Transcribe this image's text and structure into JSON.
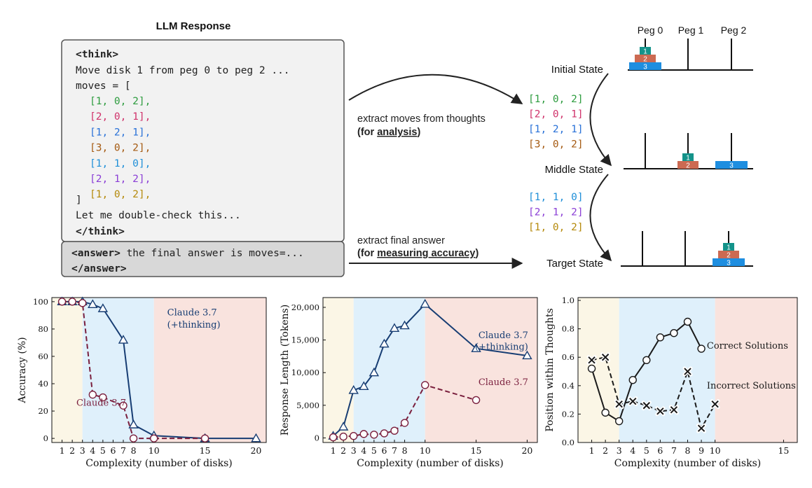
{
  "response": {
    "title": "LLM Response",
    "think_open": "<think>",
    "first_line": "Move disk 1 from peg 0 to peg 2 ...",
    "moves_open": "moves = [",
    "moves": [
      "[1, 0, 2],",
      "[2, 0, 1],",
      "[1, 2, 1],",
      "[3, 0, 2],",
      "[1, 1, 0],",
      "[2, 1, 2],",
      "[1, 0, 2],"
    ],
    "moves_close": "]",
    "check_line": "Let me double-check this...",
    "think_close": "</think>",
    "answer_tag": "<answer>",
    "answer_text": " the final answer is moves=...",
    "answer_close": "</answer>"
  },
  "move_colors": [
    "#2e9c3f",
    "#d0336b",
    "#2a72d8",
    "#a55a12",
    "#1f8fd8",
    "#8b3fd6",
    "#b58a0c"
  ],
  "arrows": {
    "thoughts_line1": "extract moves  from thoughts",
    "thoughts_line2_pre": "(for ",
    "thoughts_line2_em": "analysis",
    "thoughts_line2_post": ")",
    "answer_line1": "extract final answer",
    "answer_line2_pre": "(for ",
    "answer_line2_em": "measuring accuracy",
    "answer_line2_post": ")"
  },
  "extracted_moves_a": [
    "[1, 0, 2]",
    "[2, 0, 1]",
    "[1, 2, 1]",
    "[3, 0, 2]"
  ],
  "extracted_moves_b": [
    "[1, 1, 0]",
    "[2, 1, 2]",
    "[1, 0, 2]"
  ],
  "hanoi": {
    "peg_labels": [
      "Peg 0",
      "Peg 1",
      "Peg 2"
    ],
    "states": [
      "Initial State",
      "Middle State",
      "Target State"
    ],
    "disk_labels": [
      "1",
      "2",
      "3"
    ],
    "disk_colors": [
      "#14938a",
      "#cc6a52",
      "#1e8ee0"
    ]
  },
  "chart_data": [
    {
      "type": "line",
      "xlabel": "Complexity (number of disks)",
      "ylabel": "Accuracy (%)",
      "xlim": [
        0,
        21
      ],
      "ylim": [
        -3,
        103
      ],
      "xticks": [
        1,
        2,
        3,
        4,
        5,
        6,
        7,
        8,
        10,
        15,
        20
      ],
      "yticks": [
        0,
        20,
        40,
        60,
        80,
        100
      ],
      "regions": [
        [
          0,
          3,
          "#fbf6e6"
        ],
        [
          3,
          10,
          "#dff0fb"
        ],
        [
          10,
          21,
          "#f9e3de"
        ]
      ],
      "series": [
        {
          "name": "Claude 3.7 (+thinking)",
          "x": [
            1,
            2,
            3,
            4,
            5,
            7,
            8,
            10,
            15,
            20
          ],
          "y": [
            100,
            100,
            100,
            98,
            95,
            72,
            10,
            2,
            0,
            0
          ],
          "color": "#173d73",
          "marker": "triangle",
          "dash": false
        },
        {
          "name": "Claude 3.7",
          "x": [
            1,
            2,
            3,
            4,
            5,
            7,
            8,
            10,
            15
          ],
          "y": [
            100,
            100,
            99,
            32,
            30,
            24,
            0,
            0,
            0
          ],
          "color": "#7a1f3d",
          "marker": "circle",
          "dash": true
        }
      ],
      "labels": [
        {
          "text": "Claude 3.7",
          "x": 11.3,
          "y": 90,
          "color": "#173d73"
        },
        {
          "text": "(+thinking)",
          "x": 11.3,
          "y": 81,
          "color": "#173d73"
        },
        {
          "text": "Claude 3.7",
          "x": 2.4,
          "y": 24,
          "color": "#7a1f3d"
        }
      ]
    },
    {
      "type": "line",
      "xlabel": "Complexity (number of disks)",
      "ylabel": "Response Length (Tokens)",
      "xlim": [
        0,
        21
      ],
      "ylim": [
        -700,
        21500
      ],
      "xticks": [
        1,
        2,
        3,
        4,
        5,
        6,
        7,
        8,
        10,
        15,
        20
      ],
      "yticks": [
        0,
        5000,
        10000,
        15000,
        20000
      ],
      "ytick_labels": [
        "0",
        "5,000",
        "10,000",
        "15,000",
        "20,000"
      ],
      "regions": [
        [
          0,
          3,
          "#fbf6e6"
        ],
        [
          3,
          10,
          "#dff0fb"
        ],
        [
          10,
          21,
          "#f9e3de"
        ]
      ],
      "series": [
        {
          "name": "Claude 3.7 (+thinking)",
          "x": [
            1,
            2,
            3,
            4,
            5,
            6,
            7,
            8,
            10,
            15,
            20
          ],
          "y": [
            300,
            1700,
            7300,
            7900,
            10000,
            14400,
            16800,
            17200,
            20500,
            13700,
            12600
          ],
          "color": "#173d73",
          "marker": "triangle",
          "dash": false
        },
        {
          "name": "Claude 3.7",
          "x": [
            1,
            2,
            3,
            4,
            5,
            6,
            7,
            8,
            10,
            15
          ],
          "y": [
            100,
            200,
            300,
            600,
            500,
            700,
            1100,
            2300,
            8100,
            5800
          ],
          "color": "#7a1f3d",
          "marker": "circle",
          "dash": true
        }
      ],
      "labels": [
        {
          "text": "Claude 3.7",
          "x": 20.1,
          "y": 15300,
          "color": "#173d73",
          "anchor": "end"
        },
        {
          "text": "(+thinking)",
          "x": 20.1,
          "y": 13500,
          "color": "#173d73",
          "anchor": "end"
        },
        {
          "text": "Claude 3.7",
          "x": 20.1,
          "y": 8100,
          "color": "#7a1f3d",
          "anchor": "end"
        }
      ]
    },
    {
      "type": "line",
      "xlabel": "Complexity (number of disks)",
      "ylabel": "Position within Thoughts",
      "xlim": [
        0,
        16
      ],
      "ylim": [
        0,
        1.02
      ],
      "xticks": [
        1,
        2,
        3,
        4,
        5,
        6,
        7,
        8,
        9,
        10,
        15
      ],
      "yticks": [
        0,
        0.2,
        0.4,
        0.6,
        0.8,
        1.0
      ],
      "ytick_labels": [
        "0.0",
        "0.2",
        "0.4",
        "0.6",
        "0.8",
        "1.0"
      ],
      "regions": [
        [
          0,
          3,
          "#fbf6e6"
        ],
        [
          3,
          10,
          "#dff0fb"
        ],
        [
          10,
          16,
          "#f9e3de"
        ]
      ],
      "series": [
        {
          "name": "Correct Solutions",
          "x": [
            1,
            2,
            3,
            4,
            5,
            6,
            7,
            8,
            9
          ],
          "y": [
            0.52,
            0.21,
            0.15,
            0.44,
            0.58,
            0.74,
            0.77,
            0.85,
            0.66
          ],
          "color": "#1a1a1a",
          "marker": "circle",
          "dash": false
        },
        {
          "name": "Incorrect Solutions",
          "x": [
            1,
            2,
            3,
            4,
            5,
            6,
            7,
            8,
            9,
            10
          ],
          "y": [
            0.58,
            0.6,
            0.27,
            0.29,
            0.26,
            0.22,
            0.23,
            0.5,
            0.1,
            0.27
          ],
          "color": "#1a1a1a",
          "marker": "cross",
          "dash": true
        }
      ],
      "labels": [
        {
          "text": "Correct Solutions",
          "x": 9.4,
          "y": 0.66,
          "color": "#1a1a1a"
        },
        {
          "text": "Incorrect Solutions",
          "x": 9.4,
          "y": 0.38,
          "color": "#1a1a1a"
        }
      ]
    }
  ]
}
